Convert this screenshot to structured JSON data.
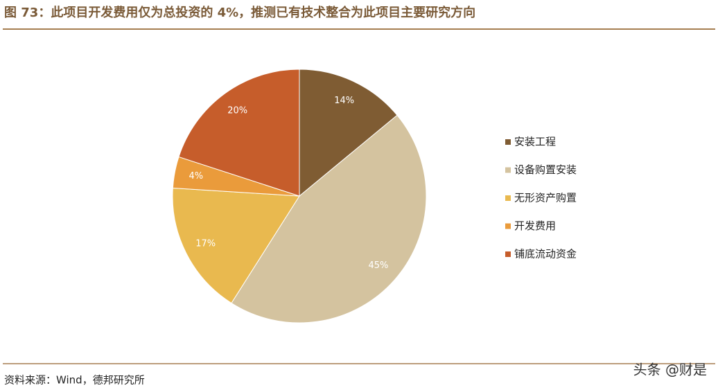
{
  "chart_data": {
    "type": "pie",
    "title": "图 73：此项目开发费用仅为总投资的 4%，推测已有技术整合为此项目主要研究方向",
    "categories": [
      "安装工程",
      "设备购置安装",
      "无形资产购置",
      "开发费用",
      "铺底流动资金"
    ],
    "values": [
      14,
      45,
      17,
      4,
      20
    ],
    "value_labels": [
      "14%",
      "45%",
      "17%",
      "4%",
      "20%"
    ],
    "colors": [
      "#7f5c33",
      "#d4c39f",
      "#e9b94f",
      "#ea9b3b",
      "#c65d2b"
    ],
    "legend": "right",
    "source": "资料来源：Wind，德邦研究所",
    "watermark": "头条 @财是"
  }
}
